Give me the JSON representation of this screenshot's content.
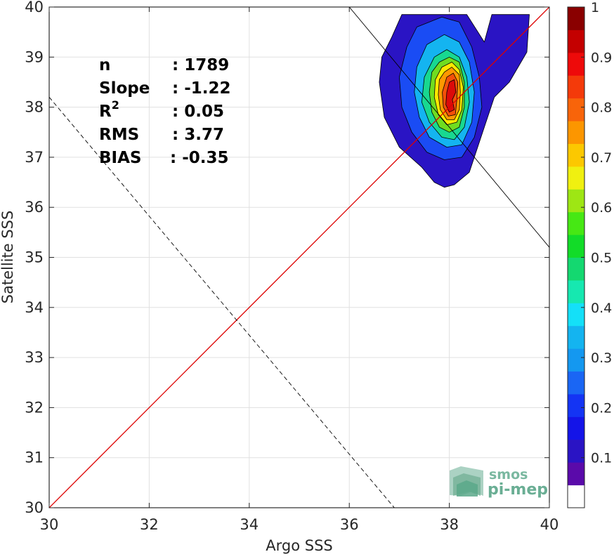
{
  "chart_data": {
    "type": "heatmap",
    "xlabel": "Argo SSS",
    "ylabel": "Satellite SSS",
    "xlim": [
      30,
      40
    ],
    "ylim": [
      30,
      40
    ],
    "x_ticks": [
      30,
      32,
      34,
      36,
      38,
      40
    ],
    "y_ticks": [
      30,
      31,
      32,
      33,
      34,
      35,
      36,
      37,
      38,
      39,
      40
    ],
    "grid": true,
    "stats": [
      {
        "label": "n",
        "value": ": 1789"
      },
      {
        "label": "Slope",
        "value": ": -1.22"
      },
      {
        "label": "R",
        "sup": "2",
        "value": ": 0.05"
      },
      {
        "label": "RMS",
        "value": ": 3.77"
      },
      {
        "label": "BIAS",
        "value": ": -0.35"
      }
    ],
    "lines": [
      {
        "kind": "identity",
        "color": "#dd0000",
        "style": "solid",
        "points": [
          [
            30,
            30
          ],
          [
            40,
            40
          ]
        ]
      },
      {
        "kind": "regression",
        "color": "#000000",
        "style": "solid",
        "points": [
          [
            36.0,
            40.0
          ],
          [
            40.0,
            35.2
          ]
        ]
      },
      {
        "kind": "fit-dashed",
        "color": "#000000",
        "style": "dashed",
        "points": [
          [
            30.0,
            38.2
          ],
          [
            36.9,
            30.0
          ]
        ]
      }
    ],
    "density_peak": [
      38.1,
      38.2
    ],
    "contour_levels": [
      {
        "level": 0.05,
        "color": "#2a14c4",
        "polygon": [
          [
            37.05,
            39.85
          ],
          [
            38.35,
            39.85
          ],
          [
            38.7,
            39.3
          ],
          [
            38.85,
            39.85
          ],
          [
            39.6,
            39.85
          ],
          [
            39.55,
            39.1
          ],
          [
            39.2,
            38.5
          ],
          [
            38.9,
            38.2
          ],
          [
            38.7,
            37.6
          ],
          [
            38.5,
            37.0
          ],
          [
            38.4,
            36.7
          ],
          [
            38.1,
            36.45
          ],
          [
            37.9,
            36.4
          ],
          [
            37.7,
            36.5
          ],
          [
            37.45,
            36.8
          ],
          [
            37.0,
            37.2
          ],
          [
            36.7,
            37.8
          ],
          [
            36.6,
            38.5
          ],
          [
            36.65,
            39.0
          ],
          [
            36.85,
            39.4
          ]
        ]
      },
      {
        "level": 0.2,
        "color": "#1a4cf4",
        "polygon": [
          [
            37.35,
            39.6
          ],
          [
            37.85,
            39.8
          ],
          [
            38.2,
            39.7
          ],
          [
            38.45,
            39.2
          ],
          [
            38.6,
            38.6
          ],
          [
            38.65,
            38.0
          ],
          [
            38.5,
            37.4
          ],
          [
            38.25,
            37.0
          ],
          [
            37.9,
            36.95
          ],
          [
            37.55,
            37.1
          ],
          [
            37.25,
            37.5
          ],
          [
            37.05,
            38.0
          ],
          [
            37.0,
            38.6
          ],
          [
            37.15,
            39.2
          ]
        ]
      },
      {
        "level": 0.35,
        "color": "#14b4f0",
        "polygon": [
          [
            37.55,
            39.25
          ],
          [
            37.9,
            39.45
          ],
          [
            38.2,
            39.3
          ],
          [
            38.4,
            38.9
          ],
          [
            38.5,
            38.3
          ],
          [
            38.45,
            37.7
          ],
          [
            38.25,
            37.25
          ],
          [
            37.95,
            37.2
          ],
          [
            37.6,
            37.4
          ],
          [
            37.4,
            37.8
          ],
          [
            37.3,
            38.3
          ],
          [
            37.35,
            38.8
          ]
        ]
      },
      {
        "level": 0.45,
        "color": "#18d890",
        "polygon": [
          [
            37.7,
            39.0
          ],
          [
            37.95,
            39.15
          ],
          [
            38.2,
            39.0
          ],
          [
            38.35,
            38.6
          ],
          [
            38.4,
            38.1
          ],
          [
            38.3,
            37.6
          ],
          [
            38.1,
            37.35
          ],
          [
            37.85,
            37.4
          ],
          [
            37.6,
            37.7
          ],
          [
            37.45,
            38.1
          ],
          [
            37.5,
            38.6
          ]
        ]
      },
      {
        "level": 0.55,
        "color": "#70dc20",
        "polygon": [
          [
            37.8,
            38.9
          ],
          [
            38.0,
            39.0
          ],
          [
            38.2,
            38.9
          ],
          [
            38.3,
            38.5
          ],
          [
            38.3,
            38.0
          ],
          [
            38.2,
            37.6
          ],
          [
            38.0,
            37.5
          ],
          [
            37.8,
            37.6
          ],
          [
            37.65,
            37.9
          ],
          [
            37.6,
            38.3
          ],
          [
            37.65,
            38.7
          ]
        ]
      },
      {
        "level": 0.65,
        "color": "#fce800",
        "polygon": [
          [
            37.85,
            38.8
          ],
          [
            38.05,
            38.9
          ],
          [
            38.2,
            38.75
          ],
          [
            38.28,
            38.4
          ],
          [
            38.25,
            37.95
          ],
          [
            38.15,
            37.7
          ],
          [
            37.95,
            37.65
          ],
          [
            37.78,
            37.85
          ],
          [
            37.7,
            38.2
          ],
          [
            37.72,
            38.55
          ]
        ]
      },
      {
        "level": 0.75,
        "color": "#ff9800",
        "polygon": [
          [
            37.9,
            38.7
          ],
          [
            38.05,
            38.8
          ],
          [
            38.2,
            38.65
          ],
          [
            38.22,
            38.3
          ],
          [
            38.2,
            37.95
          ],
          [
            38.1,
            37.75
          ],
          [
            37.95,
            37.75
          ],
          [
            37.82,
            37.95
          ],
          [
            37.78,
            38.25
          ],
          [
            37.8,
            38.55
          ]
        ]
      },
      {
        "level": 0.85,
        "color": "#f4500a",
        "polygon": [
          [
            37.95,
            38.6
          ],
          [
            38.08,
            38.68
          ],
          [
            38.17,
            38.5
          ],
          [
            38.15,
            38.15
          ],
          [
            38.12,
            37.85
          ],
          [
            37.98,
            37.82
          ],
          [
            37.88,
            38.0
          ],
          [
            37.86,
            38.3
          ]
        ]
      },
      {
        "level": 0.95,
        "color": "#dc0a0a",
        "polygon": [
          [
            38.0,
            38.5
          ],
          [
            38.1,
            38.55
          ],
          [
            38.13,
            38.3
          ],
          [
            38.06,
            38.15
          ],
          [
            38.1,
            37.95
          ],
          [
            38.0,
            37.9
          ],
          [
            37.93,
            38.05
          ],
          [
            37.95,
            38.3
          ]
        ]
      }
    ],
    "colorbar": {
      "min": 0,
      "max": 1,
      "ticks": [
        0.1,
        0.2,
        0.3,
        0.4,
        0.5,
        0.6,
        0.7,
        0.8,
        0.9,
        1
      ],
      "tick_labels": [
        "0.1",
        "0.2",
        "0.3",
        "0.4",
        "0.5",
        "0.6",
        "0.7",
        "0.8",
        "0.9",
        "1"
      ],
      "colors": [
        "#ffffff",
        "#5a0aaa",
        "#2a14c4",
        "#1414e8",
        "#1434f4",
        "#1a66f4",
        "#1498f0",
        "#14b4f0",
        "#14e0f8",
        "#16e8b0",
        "#14d870",
        "#12dc28",
        "#46e814",
        "#9ee614",
        "#f0f010",
        "#fcc800",
        "#fc9600",
        "#f8640a",
        "#f43a0a",
        "#ee0a0a",
        "#c40000",
        "#8a0000"
      ]
    }
  },
  "watermark": {
    "line1": "smos",
    "line2": "pi-mep",
    "color": "#5aa88a"
  }
}
